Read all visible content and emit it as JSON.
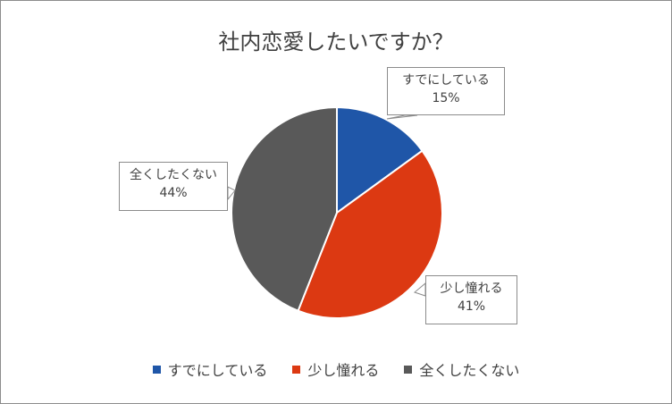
{
  "chart_data": {
    "type": "pie",
    "title": "社内恋愛したいですか？",
    "categories": [
      "すでにしている",
      "少し憧れる",
      "全くしたくない"
    ],
    "values": [
      15,
      41,
      44
    ],
    "data_labels": [
      "15%",
      "41%",
      "44%"
    ],
    "colors": [
      "#1f56a8",
      "#dc3912",
      "#595959"
    ],
    "start_angle_deg": 0,
    "direction": "clockwise",
    "legend_position": "bottom"
  }
}
